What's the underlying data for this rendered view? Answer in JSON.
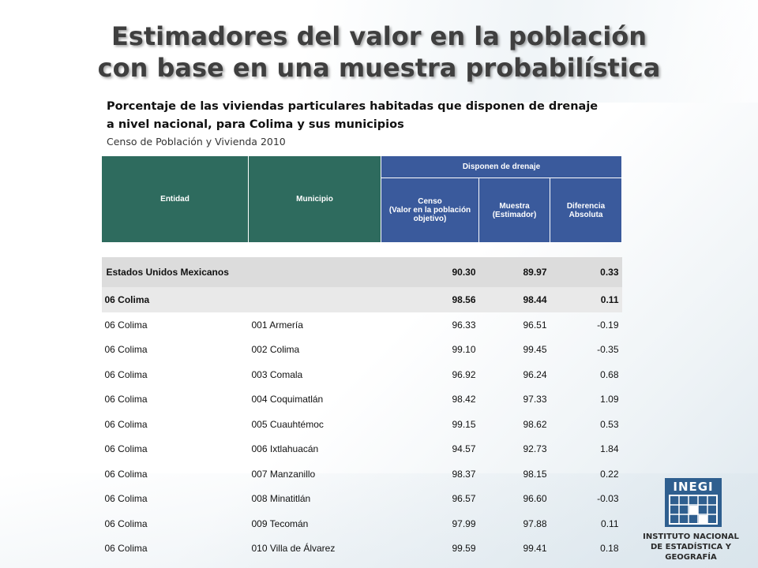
{
  "title_line1": "Estimadores del valor en la población",
  "title_line2": "con base en una muestra probabilística",
  "subtitle_line1": "Porcentaje de las viviendas particulares habitadas que disponen de drenaje",
  "subtitle_line2": "a nivel nacional, para Colima y sus municipios",
  "source": "Censo de Población y Vivienda 2010",
  "headers": {
    "entidad": "Entidad",
    "municipio": "Municipio",
    "group": "Disponen de drenaje",
    "censo_1": "Censo",
    "censo_2": "(Valor en la población",
    "censo_3": "objetivo)",
    "muestra_1": "Muestra",
    "muestra_2": "(Estimador)",
    "diferencia_1": "Diferencia",
    "diferencia_2": "Absoluta"
  },
  "national": {
    "label": "Estados Unidos Mexicanos",
    "censo": "90.30",
    "muestra": "89.97",
    "diferencia": "0.33"
  },
  "state": {
    "label": "06 Colima",
    "censo": "98.56",
    "muestra": "98.44",
    "diferencia": "0.11"
  },
  "rows": [
    {
      "entidad": "06 Colima",
      "municipio": "001 Armería",
      "censo": "96.33",
      "muestra": "96.51",
      "diferencia": "-0.19"
    },
    {
      "entidad": "06 Colima",
      "municipio": "002 Colima",
      "censo": "99.10",
      "muestra": "99.45",
      "diferencia": "-0.35"
    },
    {
      "entidad": "06 Colima",
      "municipio": "003 Comala",
      "censo": "96.92",
      "muestra": "96.24",
      "diferencia": "0.68"
    },
    {
      "entidad": "06 Colima",
      "municipio": "004 Coquimatlán",
      "censo": "98.42",
      "muestra": "97.33",
      "diferencia": "1.09"
    },
    {
      "entidad": "06 Colima",
      "municipio": "005 Cuauhtémoc",
      "censo": "99.15",
      "muestra": "98.62",
      "diferencia": "0.53"
    },
    {
      "entidad": "06 Colima",
      "municipio": "006 Ixtlahuacán",
      "censo": "94.57",
      "muestra": "92.73",
      "diferencia": "1.84"
    },
    {
      "entidad": "06 Colima",
      "municipio": "007 Manzanillo",
      "censo": "98.37",
      "muestra": "98.15",
      "diferencia": "0.22"
    },
    {
      "entidad": "06 Colima",
      "municipio": "008 Minatitlán",
      "censo": "96.57",
      "muestra": "96.60",
      "diferencia": "-0.03"
    },
    {
      "entidad": "06 Colima",
      "municipio": "009 Tecomán",
      "censo": "97.99",
      "muestra": "97.88",
      "diferencia": "0.11"
    },
    {
      "entidad": "06 Colima",
      "municipio": "010 Villa de Álvarez",
      "censo": "99.59",
      "muestra": "99.41",
      "diferencia": "0.18"
    }
  ],
  "logo": {
    "mark": "INEGI",
    "name_line1": "INSTITUTO NACIONAL",
    "name_line2": "DE ESTADÍSTICA Y GEOGRAFÍA"
  },
  "colors": {
    "header_green": "#2e6b5e",
    "header_blue": "#3a5a9c",
    "national_row": "#dcdcdc",
    "state_row": "#e9e9e9"
  }
}
